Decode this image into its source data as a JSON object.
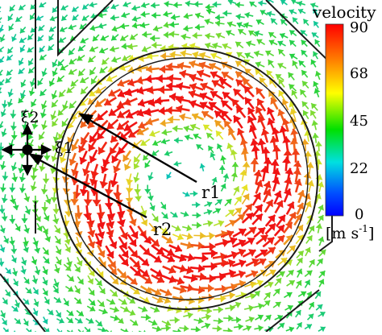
{
  "legend": {
    "title": "velocity",
    "ticks": [
      "90",
      "68",
      "45",
      "22",
      "0"
    ],
    "tick_values": [
      90,
      68,
      45,
      22,
      0
    ],
    "range": [
      0,
      90
    ],
    "unit_prefix": "[m s",
    "unit_exp": "-1",
    "unit_suffix": "]",
    "gradient": [
      "#ff0000",
      "#ff7a00",
      "#ffff00",
      "#00e000",
      "#00e0e0",
      "#0050ff",
      "#0000ff"
    ]
  },
  "labels": {
    "r1": "r1",
    "r2": "r2",
    "xi1": "ξ1",
    "xi2": "ξ2"
  },
  "colors": {
    "outline": "#1a1a1a",
    "pointer": "#000000"
  }
}
